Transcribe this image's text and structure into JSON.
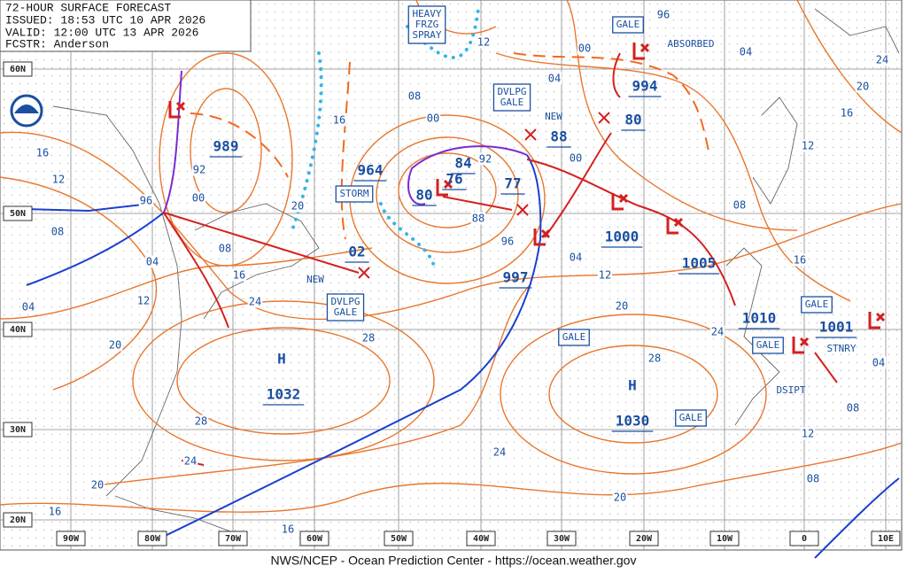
{
  "header": {
    "title": "72-HOUR SURFACE FORECAST",
    "issued": "ISSUED: 18:53 UTC 10 APR 2026",
    "valid": "VALID: 12:00 UTC 13 APR 2026",
    "forecaster": "FCSTR: Anderson"
  },
  "footer": "NWS/NCEP - Ocean Prediction Center - https://ocean.weather.gov",
  "latitude_labels": [
    "60N",
    "50N",
    "40N",
    "30N",
    "20N"
  ],
  "longitude_labels": [
    "90W",
    "80W",
    "70W",
    "60W",
    "50W",
    "40W",
    "30W",
    "20W",
    "10W",
    "0",
    "10E"
  ],
  "high_symbols": [
    "H",
    "H"
  ],
  "pressure_labels": [
    "1032",
    "1030",
    "989",
    "964",
    "80",
    "76",
    "84",
    "77",
    "997",
    "1000",
    "1005",
    "1010",
    "1001",
    "994",
    "80",
    "88",
    "02"
  ],
  "annotations": [
    {
      "lines": [
        "HEAVY",
        "FRZG",
        "SPRAY"
      ]
    },
    {
      "lines": [
        "GALE"
      ]
    },
    {
      "lines": [
        "ABSORBED"
      ]
    },
    {
      "lines": [
        "DVLPG",
        "GALE"
      ]
    },
    {
      "lines": [
        "NEW"
      ]
    },
    {
      "lines": [
        "STORM"
      ]
    },
    {
      "lines": [
        "NEW"
      ]
    },
    {
      "lines": [
        "DVLPG",
        "GALE"
      ]
    },
    {
      "lines": [
        "GALE"
      ]
    },
    {
      "lines": [
        "GALE"
      ]
    },
    {
      "lines": [
        "GALE"
      ]
    },
    {
      "lines": [
        "STNRY"
      ]
    },
    {
      "lines": [
        "DSIPT"
      ]
    },
    {
      "lines": [
        "GALE"
      ]
    }
  ],
  "isobar_labels": [
    "16",
    "12",
    "08",
    "04",
    "04",
    "12",
    "96",
    "92",
    "00",
    "08",
    "16",
    "24",
    "20",
    "28",
    "20",
    "16",
    "08",
    "00",
    "12",
    "00",
    "04",
    "96",
    "04",
    "24",
    "20",
    "16",
    "12",
    "08",
    "00",
    "88",
    "96",
    "04",
    "12",
    "20",
    "28",
    "24",
    "16",
    "04",
    "08",
    "12",
    "08",
    "24",
    "20",
    "28",
    "24",
    "20",
    "16",
    "16",
    "92"
  ]
}
